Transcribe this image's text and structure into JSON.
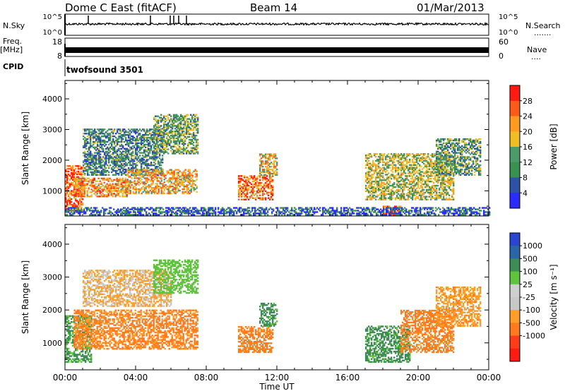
{
  "header": {
    "station": "Dome C East (fitACF)",
    "beam": "Beam 14",
    "date": "01/Mar/2013"
  },
  "strip": {
    "nsky_label": "N.Sky",
    "nsky_tick_top": "10^5",
    "nsky_tick_bottom": "10^0",
    "nsearch_label": "N.Search",
    "nsearch_marker": ".......",
    "nsearch_tick_top": "10^5",
    "nsearch_tick_bottom": "10^0",
    "freq_label": "Freq.",
    "freq_unit": "[MHz]",
    "freq_tick_top": "18",
    "freq_tick_bottom": "8",
    "nave_label": "Nave",
    "nave_marker": "....",
    "nave_tick_top": "60",
    "nave_tick_bottom": "0",
    "cpid_label": "CPID",
    "cpid_value": "twofsound 3501"
  },
  "colors": {
    "power_scale": [
      "#2b2bff",
      "#2d52a8",
      "#38924e",
      "#4c9a6a",
      "#f0bd23",
      "#ff9a21",
      "#ff5a1a",
      "#ff1a12"
    ],
    "velocity_scale": [
      "#ff1b12",
      "#ff3b18",
      "#ff7a1d",
      "#ff9d26",
      "#c8c8c8",
      "#cfcfcf",
      "#5ec43c",
      "#3d8c55",
      "#2a66a7",
      "#2a45d0"
    ]
  },
  "chart_data": [
    {
      "type": "heatmap",
      "title": "",
      "xlabel": "Time UT",
      "ylabel": "Slant Range [km]",
      "xlim": [
        0,
        24
      ],
      "ylim": [
        180,
        4600
      ],
      "x_ticks": [
        "00:00",
        "04:00",
        "08:00",
        "12:00",
        "16:00",
        "20:00",
        "00:00"
      ],
      "y_ticks": [
        "1000",
        "2000",
        "3000",
        "4000"
      ],
      "colorbar": {
        "label": "Power [dB]",
        "range": [
          0,
          32
        ],
        "ticks": [
          "4",
          "8",
          "12",
          "16",
          "20",
          "24",
          "28"
        ]
      },
      "echo_regions": [
        {
          "t0": 0.0,
          "t1": 1.0,
          "r0": 350,
          "r1": 1800,
          "power": 26
        },
        {
          "t0": 0.5,
          "t1": 3.5,
          "r0": 800,
          "r1": 1400,
          "power": 22
        },
        {
          "t0": 1.0,
          "t1": 5.5,
          "r0": 1500,
          "r1": 3000,
          "power": 10
        },
        {
          "t0": 3.5,
          "t1": 7.5,
          "r0": 900,
          "r1": 1700,
          "power": 21
        },
        {
          "t0": 5.0,
          "t1": 7.5,
          "r0": 2200,
          "r1": 3500,
          "power": 13
        },
        {
          "t0": 9.8,
          "t1": 11.8,
          "r0": 700,
          "r1": 1500,
          "power": 25
        },
        {
          "t0": 11.0,
          "t1": 12.0,
          "r0": 1500,
          "r1": 2200,
          "power": 19
        },
        {
          "t0": 17.0,
          "t1": 22.0,
          "r0": 700,
          "r1": 2200,
          "power": 17
        },
        {
          "t0": 18.0,
          "t1": 19.0,
          "r0": 200,
          "r1": 500,
          "power": 28
        },
        {
          "t0": 21.0,
          "t1": 23.5,
          "r0": 1500,
          "r1": 2700,
          "power": 12
        },
        {
          "t0": 0.0,
          "t1": 24.0,
          "r0": 200,
          "r1": 450,
          "power": 6
        }
      ]
    },
    {
      "type": "heatmap",
      "title": "",
      "xlabel": "Time UT",
      "ylabel": "Slant Range [km]",
      "xlim": [
        0,
        24
      ],
      "ylim": [
        180,
        4600
      ],
      "x_ticks": [
        "00:00",
        "04:00",
        "08:00",
        "12:00",
        "16:00",
        "20:00",
        "00:00"
      ],
      "y_ticks": [
        "1000",
        "2000",
        "3000",
        "4000"
      ],
      "colorbar": {
        "label": "Velocity [m s⁻¹]",
        "ticks": [
          "1000",
          "500",
          "100",
          "25",
          "-25",
          "-100",
          "-500",
          "-1000"
        ]
      },
      "echo_regions": [
        {
          "t0": 0.0,
          "t1": 1.5,
          "r0": 400,
          "r1": 1800,
          "velocity": 120
        },
        {
          "t0": 0.5,
          "t1": 7.5,
          "r0": 800,
          "r1": 2000,
          "velocity": -120
        },
        {
          "t0": 1.0,
          "t1": 6.0,
          "r0": 2100,
          "r1": 3200,
          "velocity": -30
        },
        {
          "t0": 5.0,
          "t1": 7.5,
          "r0": 2500,
          "r1": 3500,
          "velocity": 60
        },
        {
          "t0": 9.8,
          "t1": 11.8,
          "r0": 700,
          "r1": 1500,
          "velocity": -150
        },
        {
          "t0": 11.0,
          "t1": 12.0,
          "r0": 1500,
          "r1": 2200,
          "velocity": 150
        },
        {
          "t0": 17.0,
          "t1": 19.5,
          "r0": 400,
          "r1": 1500,
          "velocity": 150
        },
        {
          "t0": 19.0,
          "t1": 22.0,
          "r0": 700,
          "r1": 2000,
          "velocity": -150
        },
        {
          "t0": 21.0,
          "t1": 23.5,
          "r0": 1500,
          "r1": 2700,
          "velocity": -80
        }
      ]
    }
  ]
}
